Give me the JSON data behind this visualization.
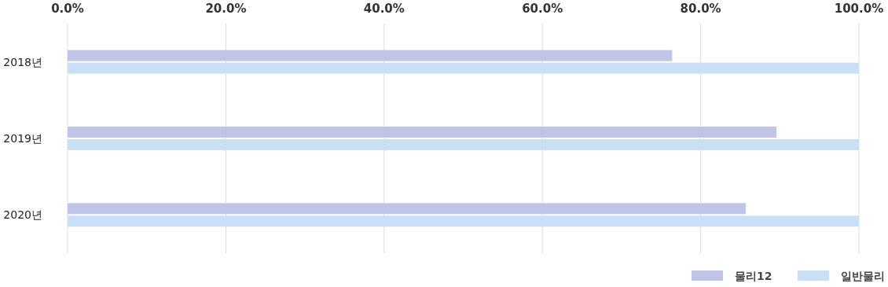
{
  "chart_data": {
    "type": "bar",
    "orientation": "horizontal",
    "categories": [
      "2018년",
      "2019년",
      "2020년"
    ],
    "series": [
      {
        "name": "물리12",
        "color": "#c0c5e8",
        "values": [
          76.4,
          89.6,
          85.7
        ]
      },
      {
        "name": "일반물리",
        "color": "#c8dff5",
        "values": [
          100,
          100,
          100
        ]
      }
    ],
    "xlim": [
      0,
      100
    ],
    "xticks": [
      {
        "value": 0,
        "label": "0.0%"
      },
      {
        "value": 20,
        "label": "20.0%"
      },
      {
        "value": 40,
        "label": "40.0%"
      },
      {
        "value": 60,
        "label": "60.0%"
      },
      {
        "value": 80,
        "label": "80.0%"
      },
      {
        "value": 100,
        "label": "100.0%"
      }
    ],
    "grid": "x",
    "legend": "bottom right"
  }
}
